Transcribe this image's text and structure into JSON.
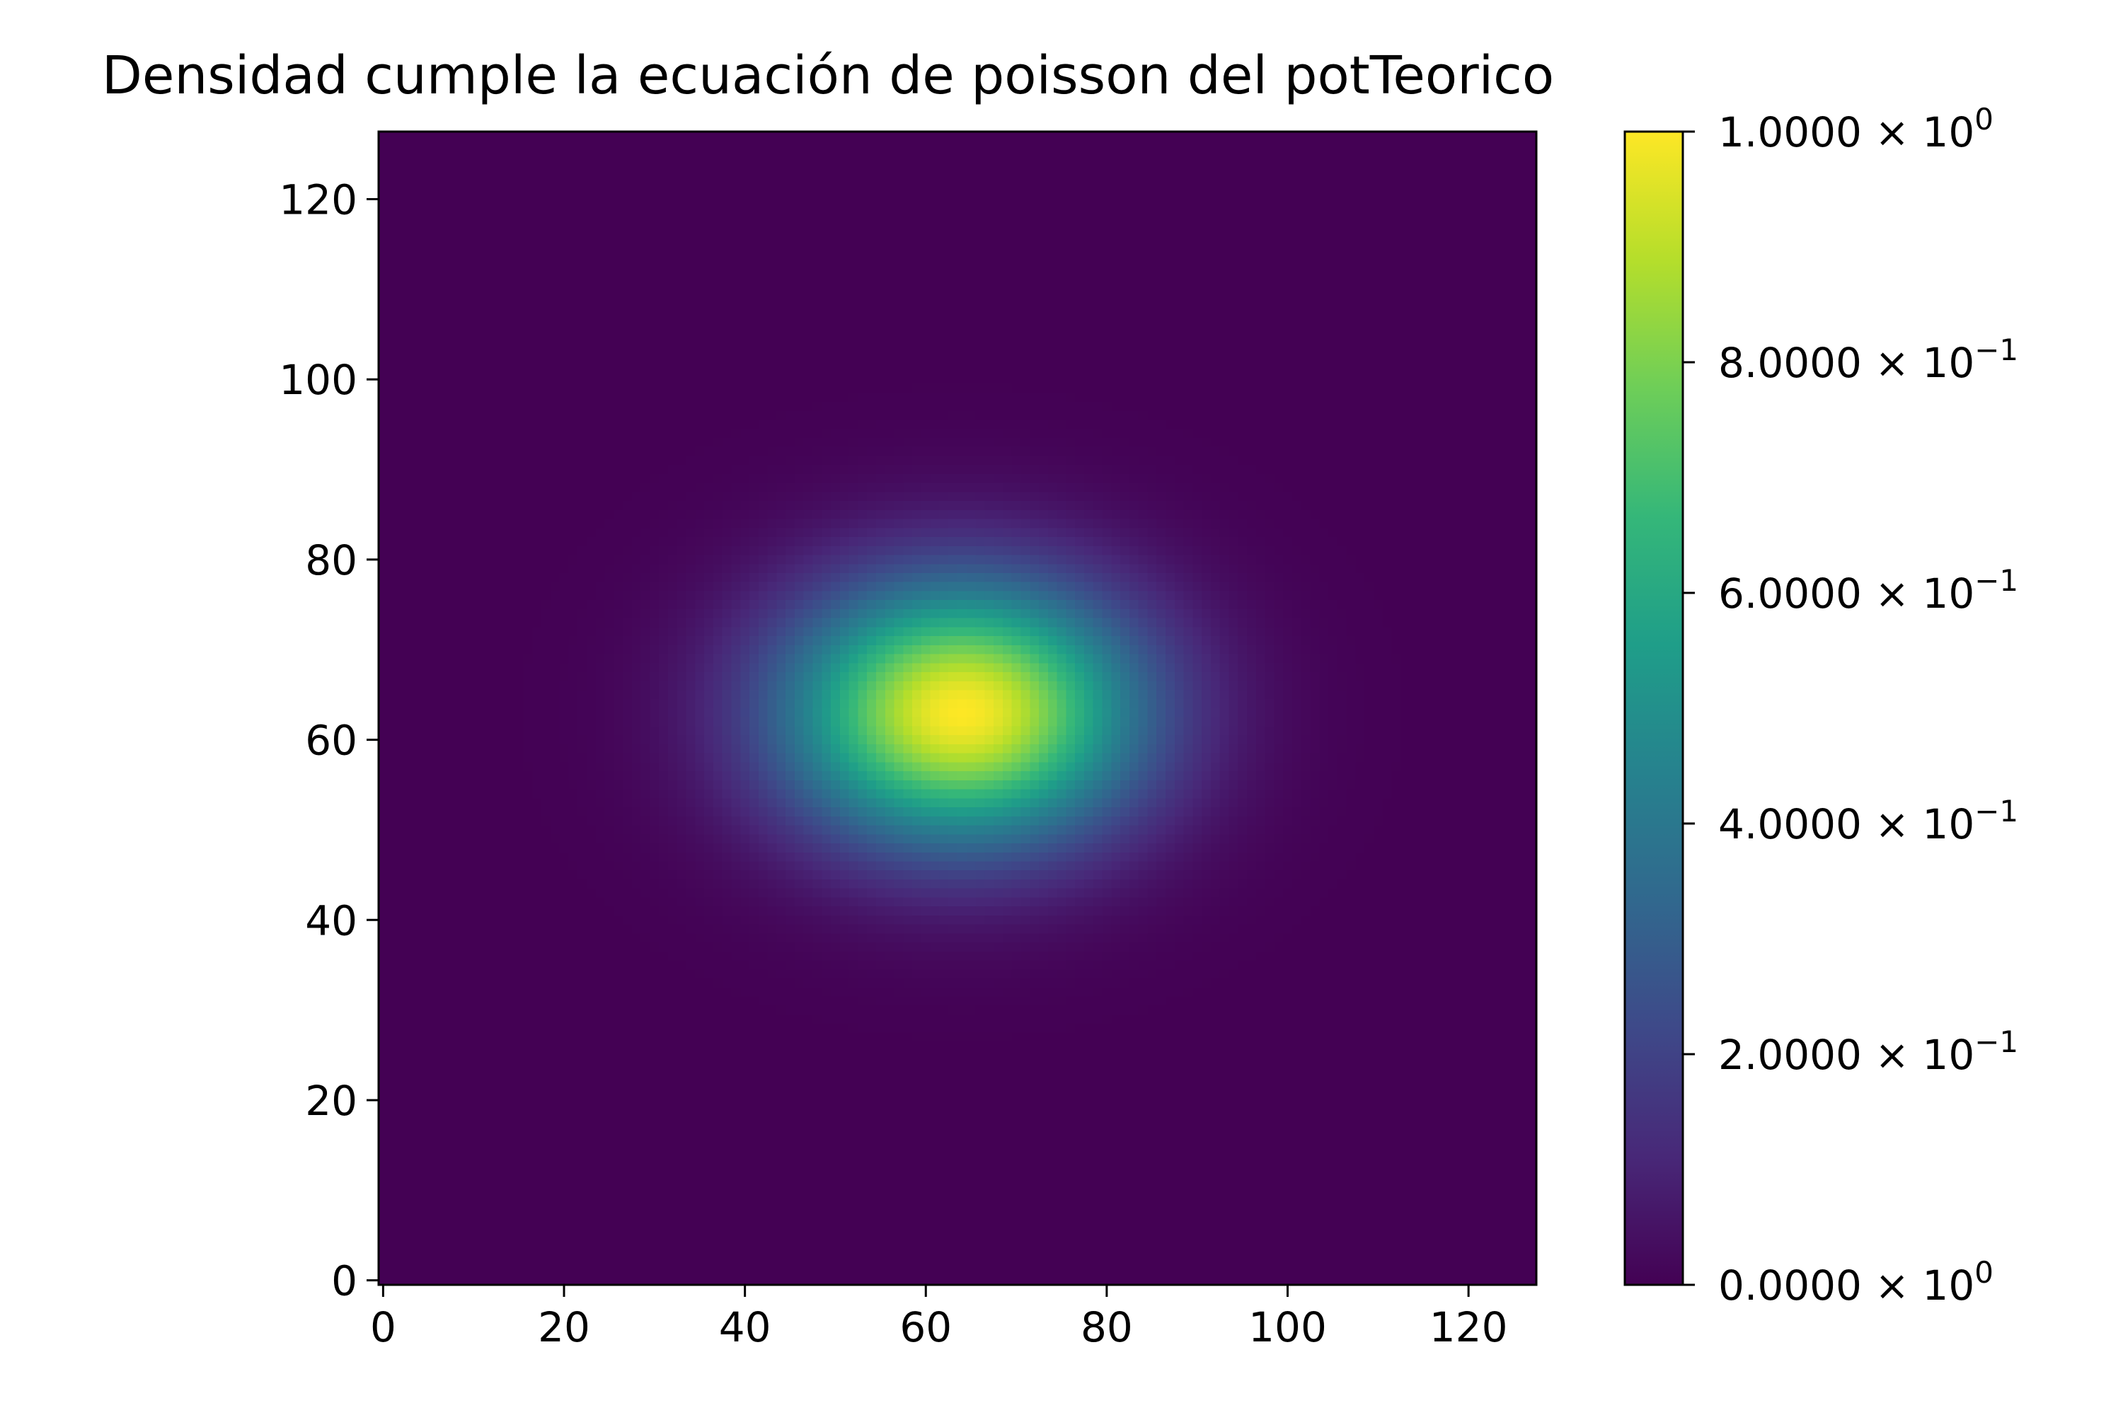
{
  "chart_data": {
    "type": "heatmap",
    "title": "Densidad cumple la ecuación de poisson del potTeorico",
    "xlabel": "",
    "ylabel": "",
    "grid_size": [
      128,
      128
    ],
    "xlim": [
      -0.5,
      127.5
    ],
    "ylim": [
      127.5,
      -0.5
    ],
    "x_ticks": [
      0,
      20,
      40,
      60,
      80,
      100,
      120
    ],
    "y_ticks": [
      0,
      20,
      40,
      60,
      80,
      100,
      120
    ],
    "x_tick_labels": [
      "0",
      "20",
      "40",
      "60",
      "80",
      "100",
      "120"
    ],
    "y_tick_labels": [
      "0",
      "20",
      "40",
      "60",
      "80",
      "100",
      "120"
    ],
    "y_axis_inverted": true,
    "colormap": "viridis",
    "colormap_stops": [
      "#440154",
      "#482878",
      "#3e4989",
      "#31688e",
      "#26828e",
      "#1f9e89",
      "#35b779",
      "#6ece58",
      "#b5de2b",
      "#fde725"
    ],
    "value_range": [
      0,
      1
    ],
    "peak": {
      "x": 64,
      "y": 64,
      "value": 1.0
    },
    "spread": {
      "sigma_x": 13.5,
      "sigma_y": 10.0
    },
    "description": "Single smooth 2D Gaussian-like blob centered near (64, 64), wider horizontally than vertically; near zero elsewhere.",
    "colorbar": {
      "ticks": [
        0.0,
        0.2,
        0.4,
        0.6,
        0.8,
        1.0
      ],
      "tick_labels": [
        {
          "mantissa": "0.0000",
          "times": "×",
          "base": "10",
          "exponent": "0"
        },
        {
          "mantissa": "2.0000",
          "times": "×",
          "base": "10",
          "exponent": "−1"
        },
        {
          "mantissa": "4.0000",
          "times": "×",
          "base": "10",
          "exponent": "−1"
        },
        {
          "mantissa": "6.0000",
          "times": "×",
          "base": "10",
          "exponent": "−1"
        },
        {
          "mantissa": "8.0000",
          "times": "×",
          "base": "10",
          "exponent": "−1"
        },
        {
          "mantissa": "1.0000",
          "times": "×",
          "base": "10",
          "exponent": "0"
        }
      ]
    }
  }
}
